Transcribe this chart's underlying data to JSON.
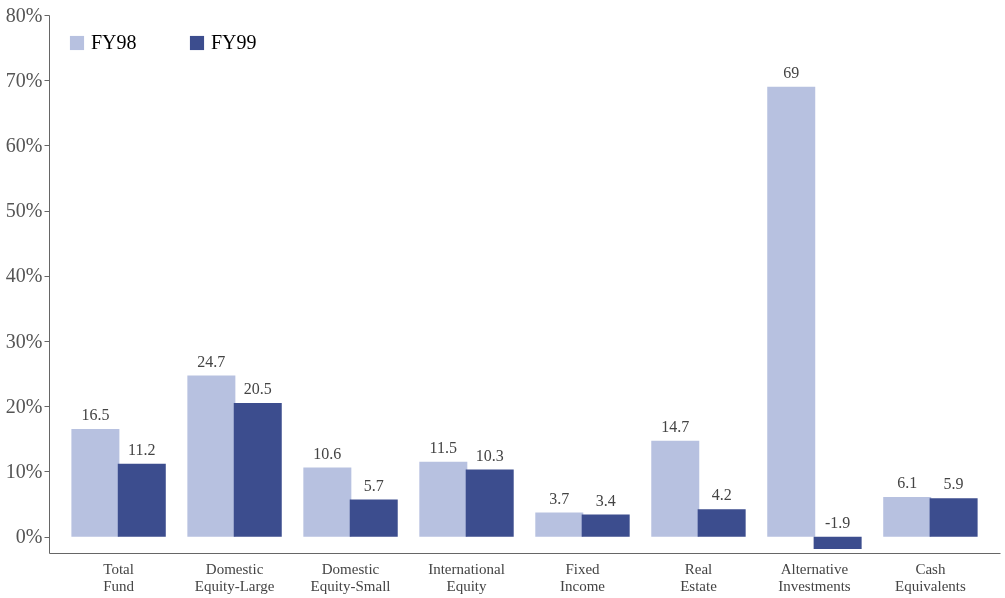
{
  "chart_data": {
    "type": "bar",
    "categories": [
      "Total Fund",
      "Domestic Equity-Large",
      "Domestic Equity-Small",
      "International Equity",
      "Fixed Income",
      "Real Estate",
      "Alternative Investments",
      "Cash Equivalents"
    ],
    "series": [
      {
        "name": "FY98",
        "color": "#b7c1e0",
        "values": [
          16.5,
          24.7,
          10.6,
          11.5,
          3.7,
          14.7,
          69,
          6.1
        ]
      },
      {
        "name": "FY99",
        "color": "#3c4d8e",
        "values": [
          11.2,
          20.5,
          5.7,
          10.3,
          3.4,
          4.2,
          -1.9,
          5.9
        ]
      }
    ],
    "ylim": [
      -2.5,
      80
    ],
    "yticks": [
      {
        "value": 0,
        "label": "0%"
      },
      {
        "value": 10,
        "label": "10%"
      },
      {
        "value": 20,
        "label": "20%"
      },
      {
        "value": 30,
        "label": "30%"
      },
      {
        "value": 40,
        "label": "40%"
      },
      {
        "value": 50,
        "label": "50%"
      },
      {
        "value": 60,
        "label": "60%"
      },
      {
        "value": 70,
        "label": "70%"
      },
      {
        "value": 80,
        "label": "80%"
      }
    ],
    "data_labels": true,
    "grid": false,
    "legend": "top left"
  }
}
